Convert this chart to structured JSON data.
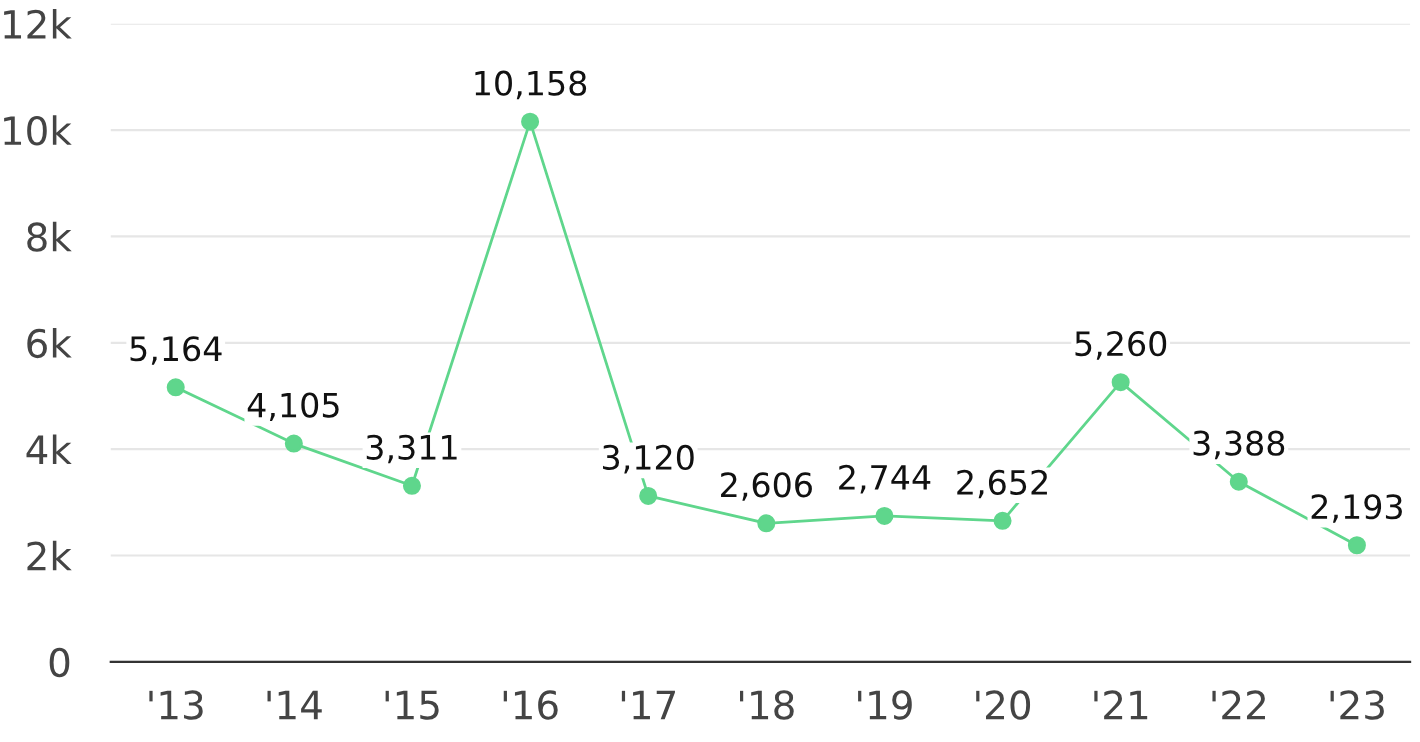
{
  "chart_data": {
    "type": "line",
    "categories": [
      "'13",
      "'14",
      "'15",
      "'16",
      "'17",
      "'18",
      "'19",
      "'20",
      "'21",
      "'22",
      "'23"
    ],
    "series": [
      {
        "color": "#5fd68c",
        "values": [
          5164,
          4105,
          3311,
          10158,
          3120,
          2606,
          2744,
          2652,
          5260,
          3388,
          2193
        ],
        "value_labels": [
          "5,164",
          "4,105",
          "3,311",
          "10,158",
          "3,120",
          "2,606",
          "2,744",
          "2,652",
          "5,260",
          "3,388",
          "2,193"
        ]
      }
    ],
    "ylim": [
      0,
      12000
    ],
    "yticks": [
      0,
      {
        "value": 2000,
        "label": "2k"
      },
      {
        "value": 4000,
        "label": "4k"
      },
      {
        "value": 6000,
        "label": "6k"
      },
      {
        "value": 8000,
        "label": "8k"
      },
      {
        "value": 10000,
        "label": "10k"
      },
      {
        "value": 12000,
        "label": "12k"
      }
    ],
    "grid": "y",
    "marker": "circle",
    "line_style": "solid"
  }
}
